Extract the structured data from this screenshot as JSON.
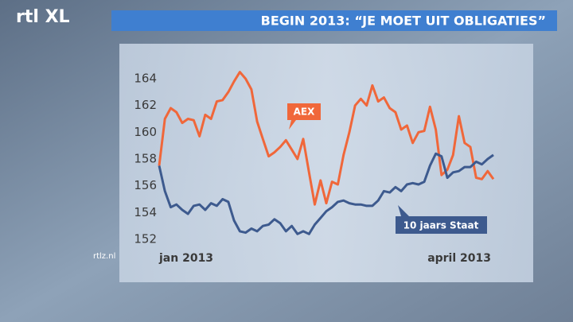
{
  "logo": "rtl XL",
  "site": "rtlz.nl",
  "chart_data": {
    "type": "line",
    "title": "BEGIN 2013: “JE MOET UIT OBLIGATIES”",
    "categories": [
      "jan 2013",
      null,
      null,
      null,
      null,
      null,
      null,
      null,
      null,
      null,
      null,
      null,
      null,
      null,
      null,
      null,
      null,
      null,
      null,
      null,
      null,
      null,
      null,
      null,
      null,
      null,
      null,
      null,
      null,
      null,
      null,
      null,
      null,
      null,
      null,
      null,
      null,
      null,
      null,
      null,
      null,
      null,
      null,
      null,
      null,
      null,
      null,
      null,
      null,
      null,
      null,
      null,
      null,
      null,
      null,
      null,
      null,
      null,
      "april 2013"
    ],
    "series": [
      {
        "name": "AEX",
        "color": "#f0673a",
        "values": [
          157.5,
          161,
          161.8,
          161.5,
          160.7,
          161,
          160.9,
          159.7,
          161.3,
          161,
          162.3,
          162.4,
          163,
          163.8,
          164.5,
          164,
          163.2,
          160.8,
          159.5,
          158.2,
          158.5,
          158.9,
          159.4,
          158.7,
          158,
          159.5,
          157,
          154.6,
          156.4,
          154.7,
          156.3,
          156.1,
          158.3,
          160,
          162,
          162.5,
          162,
          163.5,
          162.3,
          162.6,
          161.8,
          161.5,
          160.2,
          160.5,
          159.2,
          160,
          160.1,
          161.9,
          160.2,
          156.8,
          157.2,
          158.3,
          161.2,
          159.2,
          158.9,
          156.6,
          156.5,
          157.1,
          156.5
        ]
      },
      {
        "name": "10 jaars Staat",
        "color": "#3d5a8e",
        "values": [
          157.5,
          155.6,
          154.4,
          154.6,
          154.2,
          153.9,
          154.5,
          154.6,
          154.2,
          154.7,
          154.5,
          155,
          154.8,
          153.4,
          152.6,
          152.5,
          152.8,
          152.6,
          153,
          153.1,
          153.5,
          153.2,
          152.6,
          153,
          152.4,
          152.6,
          152.4,
          153.1,
          153.6,
          154.1,
          154.4,
          154.8,
          154.9,
          154.7,
          154.6,
          154.6,
          154.5,
          154.5,
          154.9,
          155.6,
          155.5,
          155.9,
          155.6,
          156.1,
          156.2,
          156.1,
          156.3,
          157.5,
          158.4,
          158.2,
          156.6,
          157,
          157.1,
          157.4,
          157.4,
          157.8,
          157.6,
          158,
          158.3
        ]
      }
    ],
    "ylim": [
      151.5,
      165
    ],
    "yticks": [
      152,
      154,
      156,
      158,
      160,
      162,
      164
    ],
    "grid": false
  }
}
